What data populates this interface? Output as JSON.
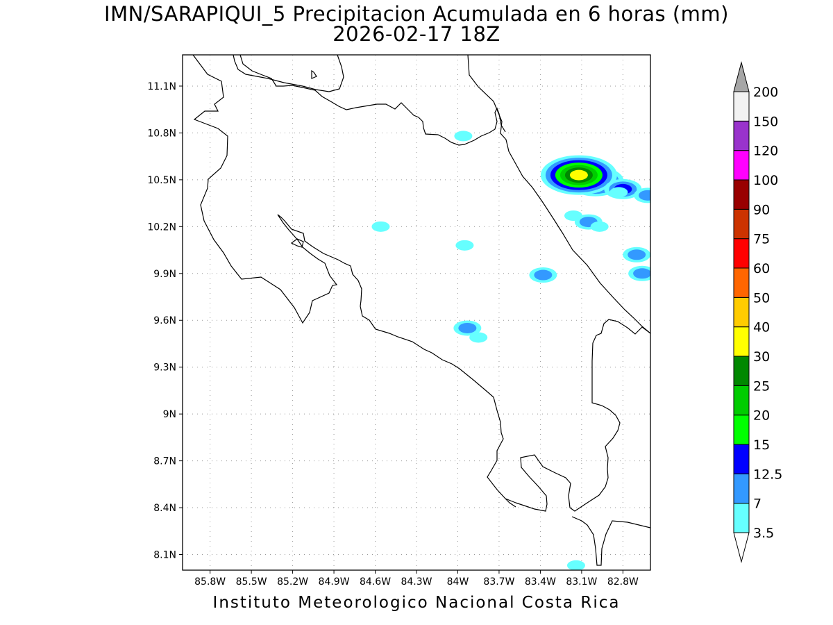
{
  "title": {
    "line1": "IMN/SARAPIQUI_5 Precipitacion Acumulada en 6 horas (mm)",
    "line2": "2026-02-17 18Z"
  },
  "footer": "Instituto Meteorologico Nacional Costa Rica",
  "map": {
    "lon_range": [
      -86.0,
      -82.6
    ],
    "lat_range": [
      8.0,
      11.3
    ],
    "lat_ticks": [
      {
        "value": 11.1,
        "label": "11.1N"
      },
      {
        "value": 10.8,
        "label": "10.8N"
      },
      {
        "value": 10.5,
        "label": "10.5N"
      },
      {
        "value": 10.2,
        "label": "10.2N"
      },
      {
        "value": 9.9,
        "label": "9.9N"
      },
      {
        "value": 9.6,
        "label": "9.6N"
      },
      {
        "value": 9.3,
        "label": "9.3N"
      },
      {
        "value": 9.0,
        "label": "9N"
      },
      {
        "value": 8.7,
        "label": "8.7N"
      },
      {
        "value": 8.4,
        "label": "8.4N"
      },
      {
        "value": 8.1,
        "label": "8.1N"
      }
    ],
    "lon_ticks": [
      {
        "value": -85.8,
        "label": "85.8W"
      },
      {
        "value": -85.5,
        "label": "85.5W"
      },
      {
        "value": -85.2,
        "label": "85.2W"
      },
      {
        "value": -84.9,
        "label": "84.9W"
      },
      {
        "value": -84.6,
        "label": "84.6W"
      },
      {
        "value": -84.3,
        "label": "84.3W"
      },
      {
        "value": -84.0,
        "label": "84W"
      },
      {
        "value": -83.7,
        "label": "83.7W"
      },
      {
        "value": -83.4,
        "label": "83.4W"
      },
      {
        "value": -83.1,
        "label": "83.1W"
      },
      {
        "value": -82.8,
        "label": "82.8W"
      }
    ],
    "grid": "dotted"
  },
  "colorbar": {
    "levels": [
      "3.5",
      "7",
      "12.5",
      "15",
      "20",
      "25",
      "30",
      "40",
      "50",
      "60",
      "75",
      "90",
      "100",
      "120",
      "150",
      "200"
    ],
    "colors": [
      "#ffffff",
      "#66ffff",
      "#3399ff",
      "#0000ff",
      "#00ff00",
      "#00cc00",
      "#008800",
      "#ffff00",
      "#ffcc00",
      "#ff6600",
      "#ff0000",
      "#cc3300",
      "#990000",
      "#ff00ff",
      "#9933cc",
      "#f2f2f2",
      "#a6a6a6"
    ],
    "under_color": "#ffffff",
    "over_color": "#a6a6a6"
  },
  "precip_cells": [
    {
      "lon": -83.08,
      "lat": 10.5,
      "category": 1
    },
    {
      "lon": -83.03,
      "lat": 10.49,
      "category": 2
    },
    {
      "lon": -83.02,
      "lat": 10.49,
      "category": 3
    },
    {
      "lon": -83.01,
      "lat": 10.48,
      "category": 4
    },
    {
      "lon": -83.0,
      "lat": 10.49,
      "category": 5
    },
    {
      "lon": -83.12,
      "lat": 10.53,
      "category": 7
    },
    {
      "lon": -82.8,
      "lat": 10.44,
      "category": 3
    },
    {
      "lon": -82.83,
      "lat": 10.42,
      "category": 1
    },
    {
      "lon": -82.62,
      "lat": 10.4,
      "category": 2
    },
    {
      "lon": -83.96,
      "lat": 10.78,
      "category": 1
    },
    {
      "lon": -84.56,
      "lat": 10.2,
      "category": 1
    },
    {
      "lon": -83.95,
      "lat": 10.08,
      "category": 1
    },
    {
      "lon": -83.38,
      "lat": 9.89,
      "category": 2
    },
    {
      "lon": -83.05,
      "lat": 10.23,
      "category": 2
    },
    {
      "lon": -82.97,
      "lat": 10.2,
      "category": 1
    },
    {
      "lon": -83.16,
      "lat": 10.27,
      "category": 1
    },
    {
      "lon": -82.7,
      "lat": 10.02,
      "category": 2
    },
    {
      "lon": -82.66,
      "lat": 9.9,
      "category": 2
    },
    {
      "lon": -83.93,
      "lat": 9.55,
      "category": 2
    },
    {
      "lon": -83.85,
      "lat": 9.49,
      "category": 1
    },
    {
      "lon": -83.14,
      "lat": 8.03,
      "category": 1
    }
  ]
}
